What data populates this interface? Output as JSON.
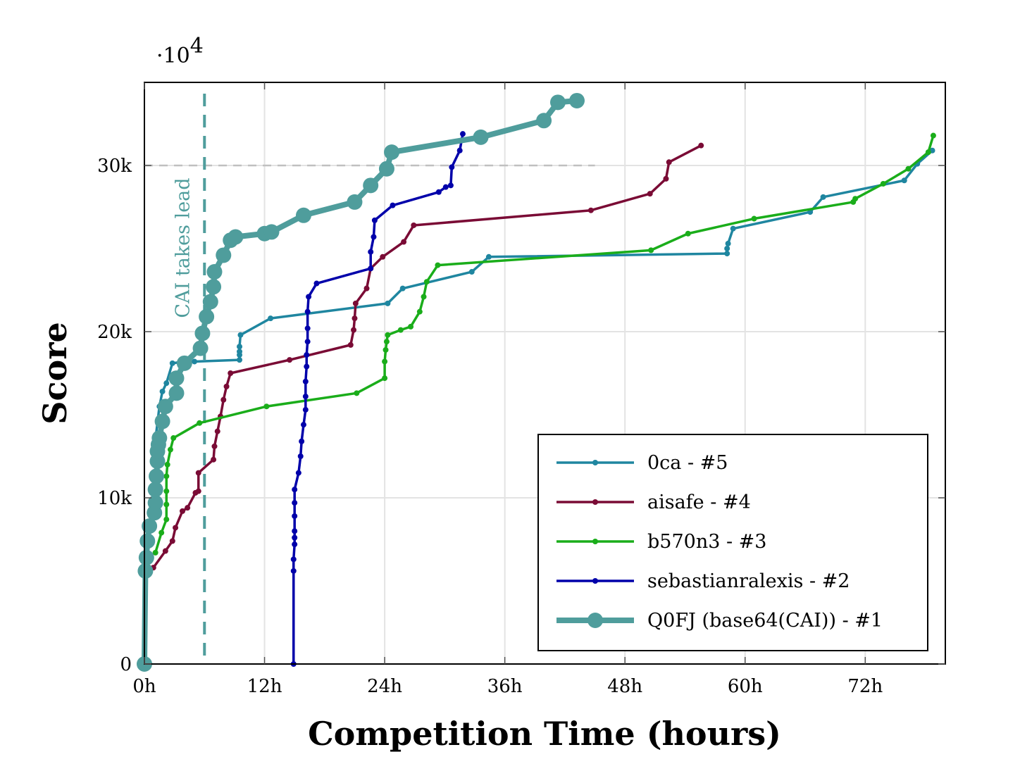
{
  "chart_data": {
    "type": "line",
    "title": "",
    "xlabel": "Competition Time (hours)",
    "ylabel": "Score",
    "y_multiplier_label": "·10",
    "y_multiplier_exponent": "4",
    "xlim": [
      0,
      80
    ],
    "ylim": [
      0,
      35000
    ],
    "grid": true,
    "legend_position": "lower-right",
    "x_ticks": [
      {
        "value": 0,
        "label": "0h"
      },
      {
        "value": 12,
        "label": "12h"
      },
      {
        "value": 24,
        "label": "24h"
      },
      {
        "value": 36,
        "label": "36h"
      },
      {
        "value": 48,
        "label": "48h"
      },
      {
        "value": 60,
        "label": "60h"
      },
      {
        "value": 72,
        "label": "72h"
      }
    ],
    "y_ticks": [
      {
        "value": 0,
        "label": "0"
      },
      {
        "value": 10000,
        "label": "10k"
      },
      {
        "value": 20000,
        "label": "20k"
      },
      {
        "value": 30000,
        "label": "30k"
      }
    ],
    "annotations": {
      "lead_line_x": 6,
      "lead_label": "CAI takes lead",
      "lead_color": "#4f9d9c",
      "reference_y": 30000,
      "reference_x_end": 45,
      "reference_color": "#c0c0c0"
    },
    "series": [
      {
        "name": "0ca - #5",
        "color": "#1f86a0",
        "marker_size": 4,
        "line_width": 3.5,
        "points": [
          [
            1.0,
            13000
          ],
          [
            1.5,
            15500
          ],
          [
            1.8,
            16400
          ],
          [
            2.2,
            16900
          ],
          [
            2.8,
            18100
          ],
          [
            4.0,
            18200
          ],
          [
            5.0,
            18200
          ],
          [
            9.5,
            18300
          ],
          [
            9.5,
            18600
          ],
          [
            9.5,
            18800
          ],
          [
            9.5,
            19100
          ],
          [
            9.6,
            19800
          ],
          [
            12.6,
            20800
          ],
          [
            24.3,
            21700
          ],
          [
            25.8,
            22600
          ],
          [
            32.7,
            23600
          ],
          [
            34.4,
            24500
          ],
          [
            58.2,
            24700
          ],
          [
            58.2,
            25000
          ],
          [
            58.3,
            25300
          ],
          [
            58.8,
            26200
          ],
          [
            66.5,
            27200
          ],
          [
            67.8,
            28100
          ],
          [
            75.9,
            29100
          ],
          [
            77.2,
            30100
          ],
          [
            78.7,
            30900
          ]
        ]
      },
      {
        "name": "aisafe - #4",
        "color": "#7a0b35",
        "marker_size": 4,
        "line_width": 3.5,
        "points": [
          [
            0.9,
            5800
          ],
          [
            2.1,
            6800
          ],
          [
            2.8,
            7400
          ],
          [
            3.1,
            8200
          ],
          [
            3.8,
            9200
          ],
          [
            4.3,
            9400
          ],
          [
            5.1,
            10300
          ],
          [
            5.4,
            10400
          ],
          [
            5.4,
            11500
          ],
          [
            6.9,
            12300
          ],
          [
            7.0,
            13100
          ],
          [
            7.3,
            14000
          ],
          [
            7.6,
            14900
          ],
          [
            7.9,
            15900
          ],
          [
            8.2,
            16700
          ],
          [
            8.6,
            17500
          ],
          [
            14.5,
            18300
          ],
          [
            20.6,
            19200
          ],
          [
            20.9,
            20100
          ],
          [
            21.0,
            20800
          ],
          [
            21.1,
            21700
          ],
          [
            22.2,
            22600
          ],
          [
            22.6,
            23800
          ],
          [
            23.8,
            24500
          ],
          [
            25.9,
            25400
          ],
          [
            26.9,
            26400
          ],
          [
            44.6,
            27300
          ],
          [
            50.5,
            28300
          ],
          [
            52.1,
            29200
          ],
          [
            52.4,
            30200
          ],
          [
            55.6,
            31200
          ]
        ]
      },
      {
        "name": "b570n3 - #3",
        "color": "#1aad1a",
        "marker_size": 4,
        "line_width": 3.5,
        "points": [
          [
            1.1,
            6700
          ],
          [
            1.7,
            7900
          ],
          [
            2.2,
            8700
          ],
          [
            2.2,
            9600
          ],
          [
            2.2,
            10400
          ],
          [
            2.2,
            11300
          ],
          [
            2.3,
            12000
          ],
          [
            2.6,
            12900
          ],
          [
            2.9,
            13600
          ],
          [
            5.5,
            14500
          ],
          [
            12.2,
            15500
          ],
          [
            21.2,
            16300
          ],
          [
            24.0,
            17200
          ],
          [
            24.0,
            18200
          ],
          [
            24.1,
            18900
          ],
          [
            24.2,
            19400
          ],
          [
            24.3,
            19800
          ],
          [
            25.6,
            20100
          ],
          [
            26.6,
            20300
          ],
          [
            27.5,
            21200
          ],
          [
            27.9,
            22100
          ],
          [
            28.2,
            23000
          ],
          [
            29.3,
            24000
          ],
          [
            50.6,
            24900
          ],
          [
            54.3,
            25900
          ],
          [
            60.9,
            26800
          ],
          [
            70.8,
            27800
          ],
          [
            71.0,
            28000
          ],
          [
            73.8,
            28900
          ],
          [
            76.3,
            29800
          ],
          [
            78.3,
            30800
          ],
          [
            78.8,
            31800
          ]
        ]
      },
      {
        "name": "sebastianralexis - #2",
        "color": "#0000aa",
        "marker_size": 4,
        "line_width": 3.5,
        "points": [
          [
            14.9,
            0
          ],
          [
            14.9,
            5600
          ],
          [
            14.9,
            6300
          ],
          [
            15.0,
            7200
          ],
          [
            15.0,
            7600
          ],
          [
            15.0,
            8000
          ],
          [
            15.0,
            8900
          ],
          [
            15.0,
            9700
          ],
          [
            15.0,
            10500
          ],
          [
            15.4,
            11500
          ],
          [
            15.6,
            12500
          ],
          [
            15.7,
            13400
          ],
          [
            15.9,
            14400
          ],
          [
            16.1,
            15300
          ],
          [
            16.1,
            16100
          ],
          [
            16.1,
            17000
          ],
          [
            16.2,
            17900
          ],
          [
            16.2,
            18600
          ],
          [
            16.3,
            19400
          ],
          [
            16.3,
            20200
          ],
          [
            16.3,
            21200
          ],
          [
            16.4,
            22100
          ],
          [
            17.2,
            22900
          ],
          [
            22.6,
            23800
          ],
          [
            22.6,
            24800
          ],
          [
            22.9,
            25700
          ],
          [
            23.0,
            26700
          ],
          [
            24.8,
            27600
          ],
          [
            29.4,
            28400
          ],
          [
            30.1,
            28700
          ],
          [
            30.6,
            28800
          ],
          [
            30.7,
            29900
          ],
          [
            31.5,
            30900
          ],
          [
            31.8,
            31900
          ]
        ]
      },
      {
        "name": "Q0FJ (base64(CAI)) - #1",
        "color": "#4f9d9c",
        "marker_size": 11,
        "line_width": 8,
        "points": [
          [
            0.0,
            0
          ],
          [
            0.1,
            5600
          ],
          [
            0.2,
            6400
          ],
          [
            0.3,
            7400
          ],
          [
            0.5,
            8300
          ],
          [
            1.0,
            9100
          ],
          [
            1.1,
            9700
          ],
          [
            1.1,
            10500
          ],
          [
            1.2,
            11300
          ],
          [
            1.3,
            12200
          ],
          [
            1.3,
            12800
          ],
          [
            1.4,
            13200
          ],
          [
            1.5,
            13600
          ],
          [
            1.8,
            14600
          ],
          [
            2.1,
            15500
          ],
          [
            3.2,
            16300
          ],
          [
            3.2,
            17200
          ],
          [
            4.0,
            18100
          ],
          [
            5.6,
            19000
          ],
          [
            5.8,
            19900
          ],
          [
            6.2,
            20900
          ],
          [
            6.6,
            21800
          ],
          [
            6.9,
            22700
          ],
          [
            7.0,
            23600
          ],
          [
            7.9,
            24600
          ],
          [
            8.6,
            25500
          ],
          [
            9.1,
            25700
          ],
          [
            12.0,
            25900
          ],
          [
            12.7,
            26000
          ],
          [
            15.9,
            27000
          ],
          [
            21.0,
            27800
          ],
          [
            22.6,
            28800
          ],
          [
            24.2,
            29800
          ],
          [
            24.7,
            30800
          ],
          [
            33.6,
            31700
          ],
          [
            39.9,
            32700
          ],
          [
            41.3,
            33800
          ],
          [
            43.2,
            33900
          ]
        ]
      }
    ]
  }
}
